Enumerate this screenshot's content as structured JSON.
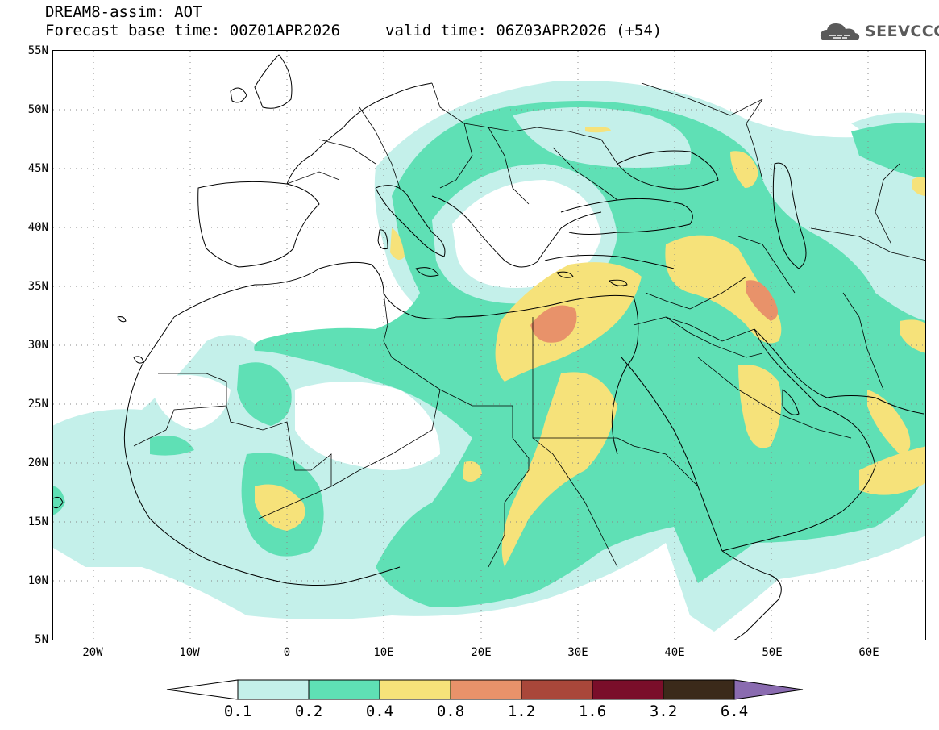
{
  "header": {
    "title": "DREAM8-assim: AOT",
    "base_time": "Forecast base time: 00Z01APR2026",
    "valid_time": "valid time: 06Z03APR2026 (+54)"
  },
  "logo": {
    "text": "SEEVCCC",
    "icon": "cloud-icon"
  },
  "map": {
    "lat_labels": [
      "55N",
      "50N",
      "45N",
      "40N",
      "35N",
      "30N",
      "25N",
      "20N",
      "15N",
      "10N",
      "5N"
    ],
    "lon_labels": [
      "20W",
      "10W",
      "0",
      "10E",
      "20E",
      "30E",
      "40E",
      "50E",
      "60E"
    ],
    "lon_range": [
      -25,
      65
    ],
    "lat_range": [
      5,
      55
    ],
    "grid": "dotted",
    "field": "AOT"
  },
  "legend": {
    "labels": [
      "0.1",
      "0.2",
      "0.4",
      "0.8",
      "1.2",
      "1.6",
      "3.2",
      "6.4"
    ],
    "colors": [
      "#ffffff",
      "#c4f0ea",
      "#5fe0b5",
      "#f6e27a",
      "#e8926a",
      "#a9473a",
      "#7a0e2a",
      "#3b2a1a",
      "#8a6bb0"
    ]
  },
  "colors": {
    "aot_0_1": "#c4f0ea",
    "aot_0_2": "#5fe0b5",
    "aot_0_4": "#f6e27a",
    "aot_0_8": "#e8926a",
    "aot_1_2": "#a9473a",
    "aot_1_6": "#7a0e2a",
    "aot_3_2": "#3b2a1a",
    "aot_6_4": "#8a6bb0"
  }
}
